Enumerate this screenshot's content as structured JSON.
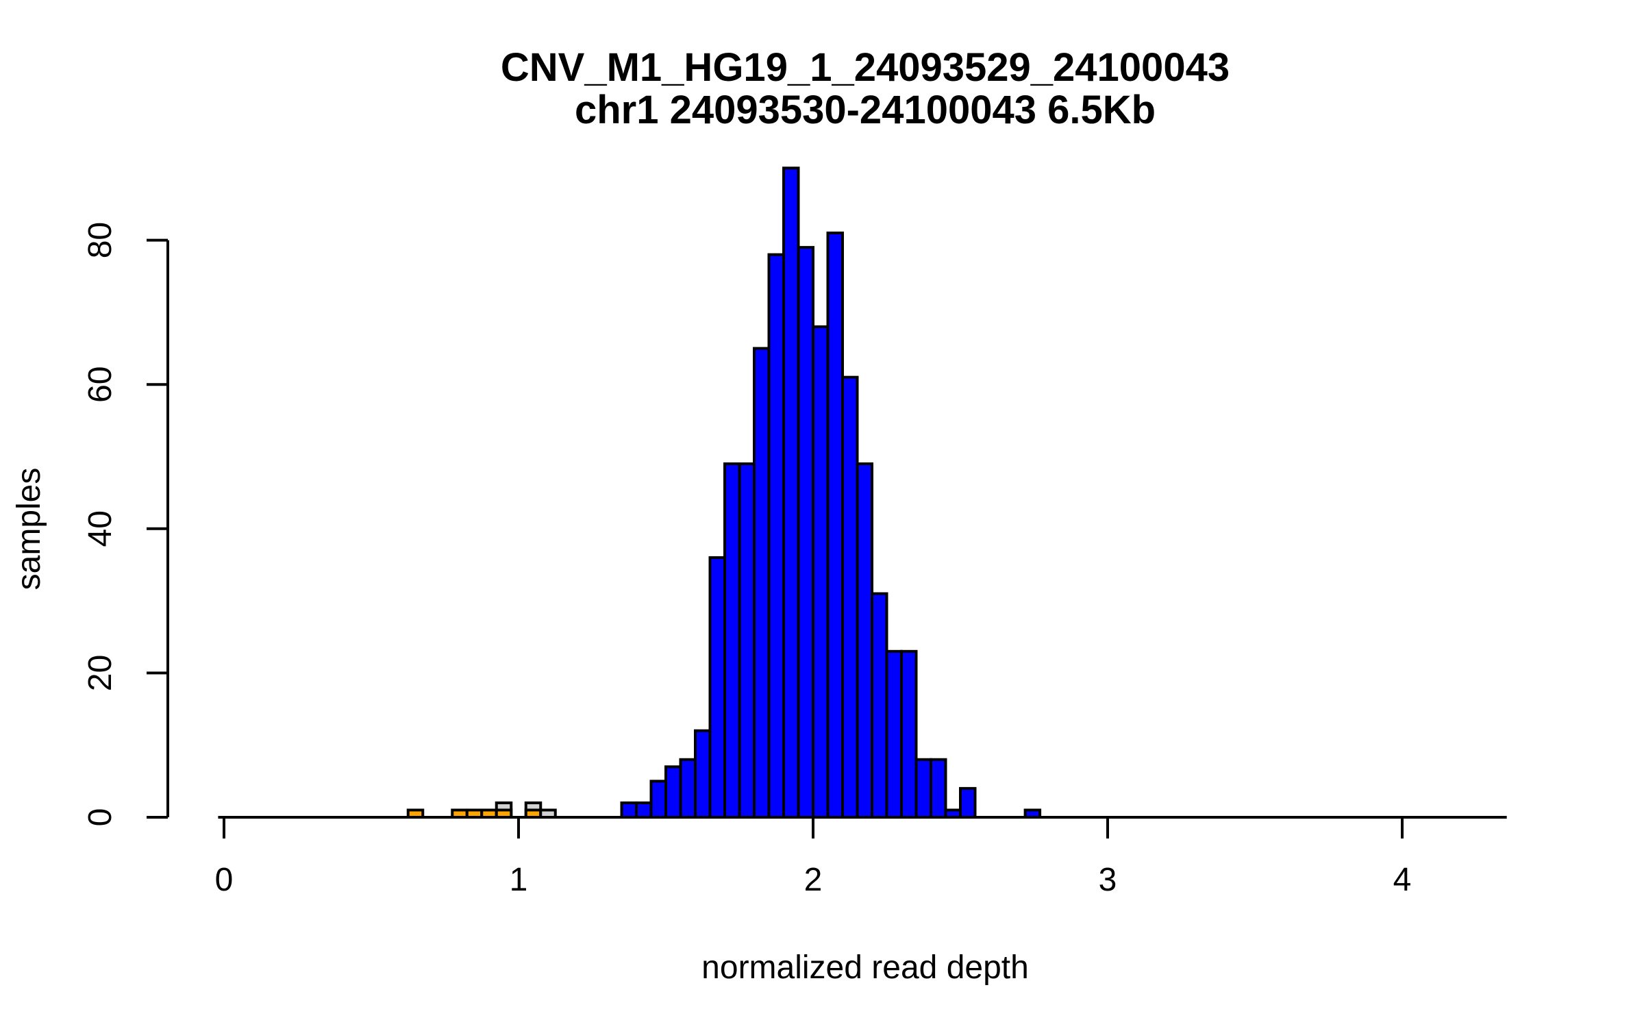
{
  "chart_data": {
    "type": "bar",
    "subtype": "histogram",
    "title": "CNV_M1_HG19_1_24093529_24100043",
    "subtitle": "chr1 24093530-24100043 6.5Kb",
    "xlabel": "normalized read depth",
    "ylabel": "samples",
    "x_ticks": [
      0,
      1,
      2,
      3,
      4
    ],
    "y_ticks": [
      0,
      20,
      40,
      60,
      80
    ],
    "xlim": [
      -0.02,
      4.355
    ],
    "ylim": [
      0,
      90
    ],
    "bin_width": 0.05,
    "grid": false,
    "legend": false,
    "colors": {
      "blue": "#0000ff",
      "orange": "#ffa500",
      "gray": "#d3d3d3",
      "axis": "#000000",
      "background": "#ffffff"
    },
    "bars": [
      {
        "x": 0.625,
        "height": 1,
        "color": "orange"
      },
      {
        "x": 0.775,
        "height": 1,
        "color": "orange"
      },
      {
        "x": 0.825,
        "height": 1,
        "color": "orange"
      },
      {
        "x": 0.875,
        "height": 1,
        "color": "orange"
      },
      {
        "x": 0.925,
        "height": 2,
        "color": "gray"
      },
      {
        "x": 0.925,
        "height": 1,
        "color": "orange"
      },
      {
        "x": 1.025,
        "height": 2,
        "color": "gray"
      },
      {
        "x": 1.025,
        "height": 1,
        "color": "orange"
      },
      {
        "x": 1.075,
        "height": 1,
        "color": "gray"
      },
      {
        "x": 1.35,
        "height": 2,
        "color": "blue"
      },
      {
        "x": 1.4,
        "height": 2,
        "color": "blue"
      },
      {
        "x": 1.45,
        "height": 5,
        "color": "blue"
      },
      {
        "x": 1.5,
        "height": 7,
        "color": "blue"
      },
      {
        "x": 1.55,
        "height": 8,
        "color": "blue"
      },
      {
        "x": 1.6,
        "height": 12,
        "color": "blue"
      },
      {
        "x": 1.65,
        "height": 36,
        "color": "blue"
      },
      {
        "x": 1.7,
        "height": 49,
        "color": "blue"
      },
      {
        "x": 1.75,
        "height": 49,
        "color": "blue"
      },
      {
        "x": 1.8,
        "height": 65,
        "color": "blue"
      },
      {
        "x": 1.85,
        "height": 78,
        "color": "blue"
      },
      {
        "x": 1.9,
        "height": 90,
        "color": "blue"
      },
      {
        "x": 1.95,
        "height": 79,
        "color": "blue"
      },
      {
        "x": 2.0,
        "height": 68,
        "color": "blue"
      },
      {
        "x": 2.05,
        "height": 81,
        "color": "blue"
      },
      {
        "x": 2.1,
        "height": 61,
        "color": "blue"
      },
      {
        "x": 2.15,
        "height": 49,
        "color": "blue"
      },
      {
        "x": 2.2,
        "height": 31,
        "color": "blue"
      },
      {
        "x": 2.25,
        "height": 23,
        "color": "blue"
      },
      {
        "x": 2.3,
        "height": 23,
        "color": "blue"
      },
      {
        "x": 2.35,
        "height": 8,
        "color": "blue"
      },
      {
        "x": 2.4,
        "height": 8,
        "color": "blue"
      },
      {
        "x": 2.45,
        "height": 1,
        "color": "blue"
      },
      {
        "x": 2.5,
        "height": 4,
        "color": "blue"
      },
      {
        "x": 2.72,
        "height": 1,
        "color": "blue"
      }
    ]
  }
}
